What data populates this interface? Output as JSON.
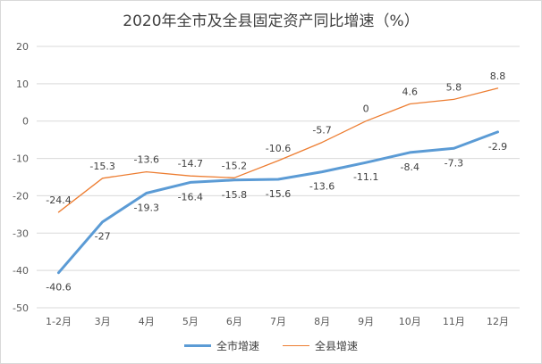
{
  "chart_data": {
    "type": "line",
    "title": "2020年全市及全县固定资产同比增速（%）",
    "categories": [
      "1-2月",
      "3月",
      "4月",
      "5月",
      "6月",
      "7月",
      "8月",
      "9月",
      "10月",
      "11月",
      "12月"
    ],
    "ylim": [
      -50,
      20
    ],
    "yticks": [
      20,
      10,
      0,
      -10,
      -20,
      -30,
      -40,
      -50
    ],
    "grid": true,
    "legend_position": "bottom",
    "series": [
      {
        "name": "全市增速",
        "color": "#5b9bd5",
        "values": [
          -40.6,
          -27,
          -19.3,
          -16.4,
          -15.8,
          -15.6,
          -13.6,
          -11.1,
          -8.4,
          -7.3,
          -2.9
        ],
        "labels": [
          "-40.6",
          "-27",
          "-19.3",
          "-16.4",
          "-15.8",
          "-15.6",
          "-13.6",
          "-11.1",
          "-8.4",
          "-7.3",
          "-2.9"
        ]
      },
      {
        "name": "全县增速",
        "color": "#ed7d31",
        "values": [
          -24.4,
          -15.3,
          -13.6,
          -14.7,
          -15.2,
          -10.6,
          -5.7,
          0,
          4.6,
          5.8,
          8.8
        ],
        "labels": [
          "-24.4",
          "-15.3",
          "-13.6",
          "-14.7",
          "-15.2",
          "-10.6",
          "-5.7",
          "0",
          "4.6",
          "5.8",
          "8.8"
        ]
      }
    ]
  }
}
